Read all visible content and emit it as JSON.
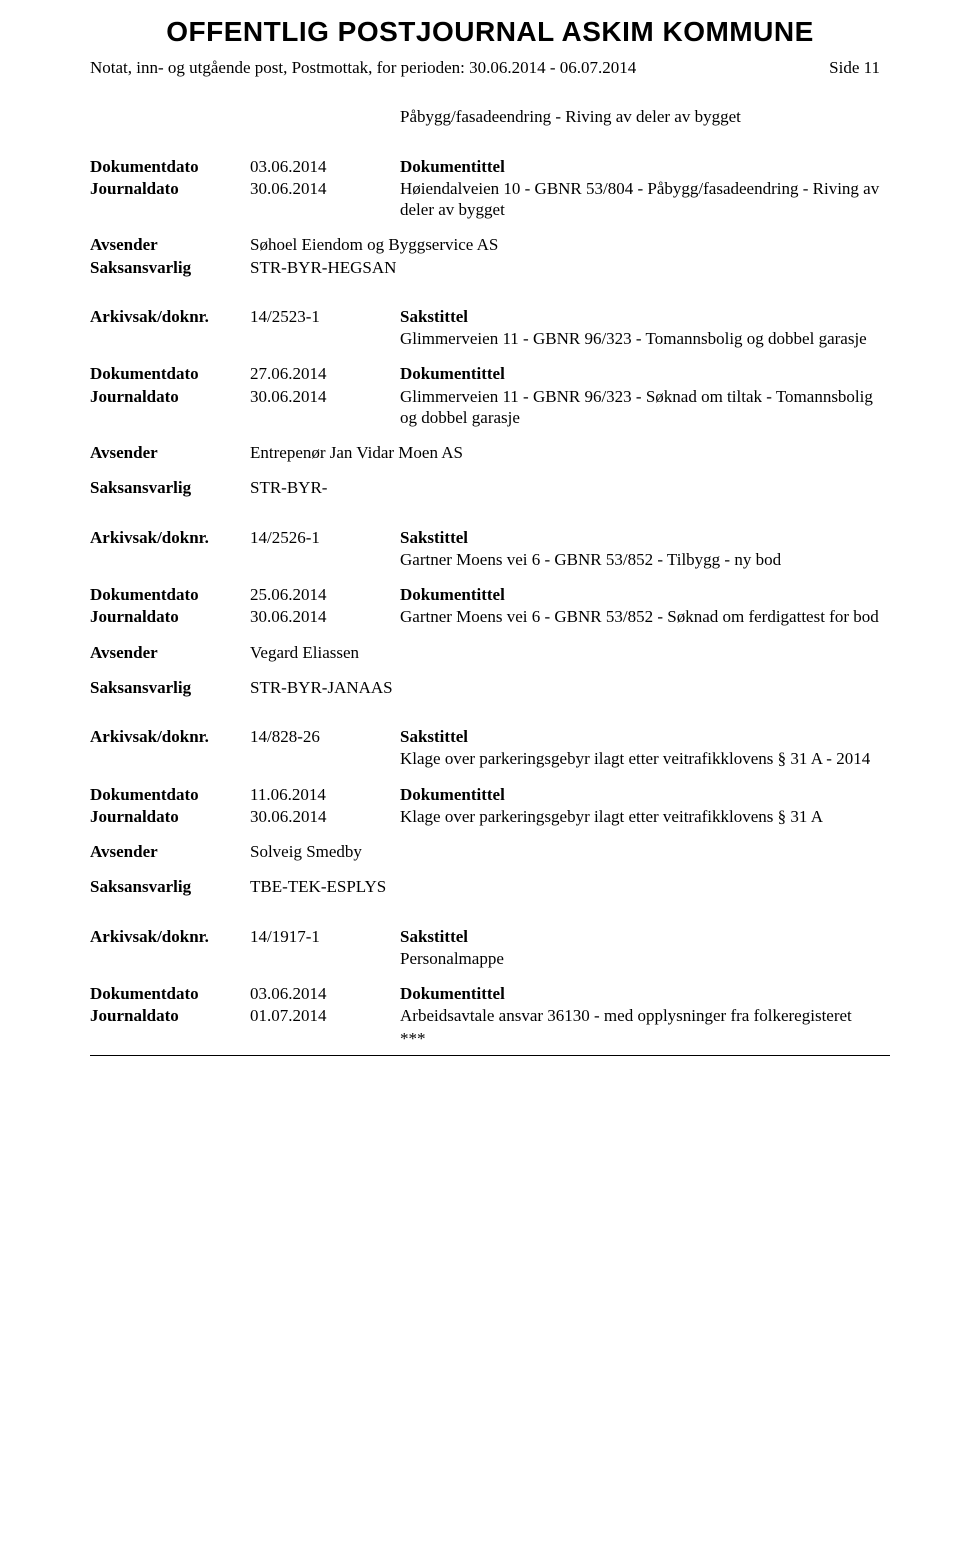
{
  "header": {
    "title": "OFFENTLIG POSTJOURNAL ASKIM KOMMUNE",
    "subheading": "Notat, inn- og utgående post, Postmottak, for perioden: 30.06.2014 - 06.07.2014",
    "side_label": "Side 11"
  },
  "labels": {
    "dokumentdato": "Dokumentdato",
    "journaldato": "Journaldato",
    "dokumentittel": "Dokumentittel",
    "avsender": "Avsender",
    "saksansvarlig": "Saksansvarlig",
    "arkivsak": "Arkivsak/doknr.",
    "sakstittel": "Sakstittel"
  },
  "entries": [
    {
      "pre_indent": "Påbygg/fasadeendring - Riving av deler av bygget",
      "dokdate": "03.06.2014",
      "journaldate": "30.06.2014",
      "doktitle": "Høiendalveien 10 - GBNR 53/804 - Påbygg/fasadeendring - Riving av deler av bygget",
      "avsender": "Søhoel Eiendom og Byggservice AS",
      "saksansvarlig": "STR-BYR-HEGSAN"
    },
    {
      "arkivsak": "14/2523-1",
      "sakstittel": "Glimmerveien 11 - GBNR 96/323 - Tomannsbolig og dobbel garasje",
      "dokdate": "27.06.2014",
      "journaldate": "30.06.2014",
      "doktitle": "Glimmerveien 11 - GBNR 96/323 - Søknad om tiltak - Tomannsbolig og dobbel garasje",
      "avsender": "Entrepenør Jan Vidar Moen AS",
      "saksansvarlig": "STR-BYR-"
    },
    {
      "arkivsak": "14/2526-1",
      "sakstittel": "Gartner Moens vei 6 - GBNR 53/852 - Tilbygg - ny bod",
      "dokdate": "25.06.2014",
      "journaldate": "30.06.2014",
      "doktitle": "Gartner Moens vei 6 - GBNR 53/852 - Søknad om ferdigattest for bod",
      "avsender": "Vegard Eliassen",
      "saksansvarlig": "STR-BYR-JANAAS"
    },
    {
      "arkivsak": "14/828-26",
      "sakstittel": "Klage over parkeringsgebyr ilagt etter veitrafikklovens § 31 A - 2014",
      "dokdate": "11.06.2014",
      "journaldate": "30.06.2014",
      "doktitle": "Klage over parkeringsgebyr ilagt etter veitrafikklovens § 31 A",
      "avsender": "Solveig Smedby",
      "saksansvarlig": "TBE-TEK-ESPLYS"
    },
    {
      "arkivsak": "14/1917-1",
      "sakstittel": "Personalmappe",
      "dokdate": "03.06.2014",
      "journaldate": "01.07.2014",
      "doktitle": "Arbeidsavtale ansvar 36130 - med opplysninger fra folkeregisteret",
      "suffix": "***"
    }
  ]
}
